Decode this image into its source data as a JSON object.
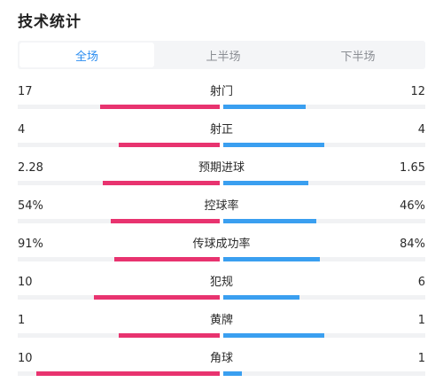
{
  "page": {
    "title": "技术统计"
  },
  "tabs": [
    {
      "label": "全场",
      "active": true
    },
    {
      "label": "上半场",
      "active": false
    },
    {
      "label": "下半场",
      "active": false
    }
  ],
  "colors": {
    "home_bar": "#e8336f",
    "away_bar": "#3a9ff0",
    "active_tab": "#2a8cf0"
  },
  "stats": [
    {
      "label": "射门",
      "home": "17",
      "away": "12",
      "home_fill": 0.59,
      "away_fill": 0.41
    },
    {
      "label": "射正",
      "home": "4",
      "away": "4",
      "home_fill": 0.5,
      "away_fill": 0.5
    },
    {
      "label": "预期进球",
      "home": "2.28",
      "away": "1.65",
      "home_fill": 0.58,
      "away_fill": 0.42
    },
    {
      "label": "控球率",
      "home": "54%",
      "away": "46%",
      "home_fill": 0.54,
      "away_fill": 0.46
    },
    {
      "label": "传球成功率",
      "home": "91%",
      "away": "84%",
      "home_fill": 0.52,
      "away_fill": 0.48
    },
    {
      "label": "犯规",
      "home": "10",
      "away": "6",
      "home_fill": 0.625,
      "away_fill": 0.375
    },
    {
      "label": "黄牌",
      "home": "1",
      "away": "1",
      "home_fill": 0.5,
      "away_fill": 0.5
    },
    {
      "label": "角球",
      "home": "10",
      "away": "1",
      "home_fill": 0.91,
      "away_fill": 0.09
    }
  ]
}
